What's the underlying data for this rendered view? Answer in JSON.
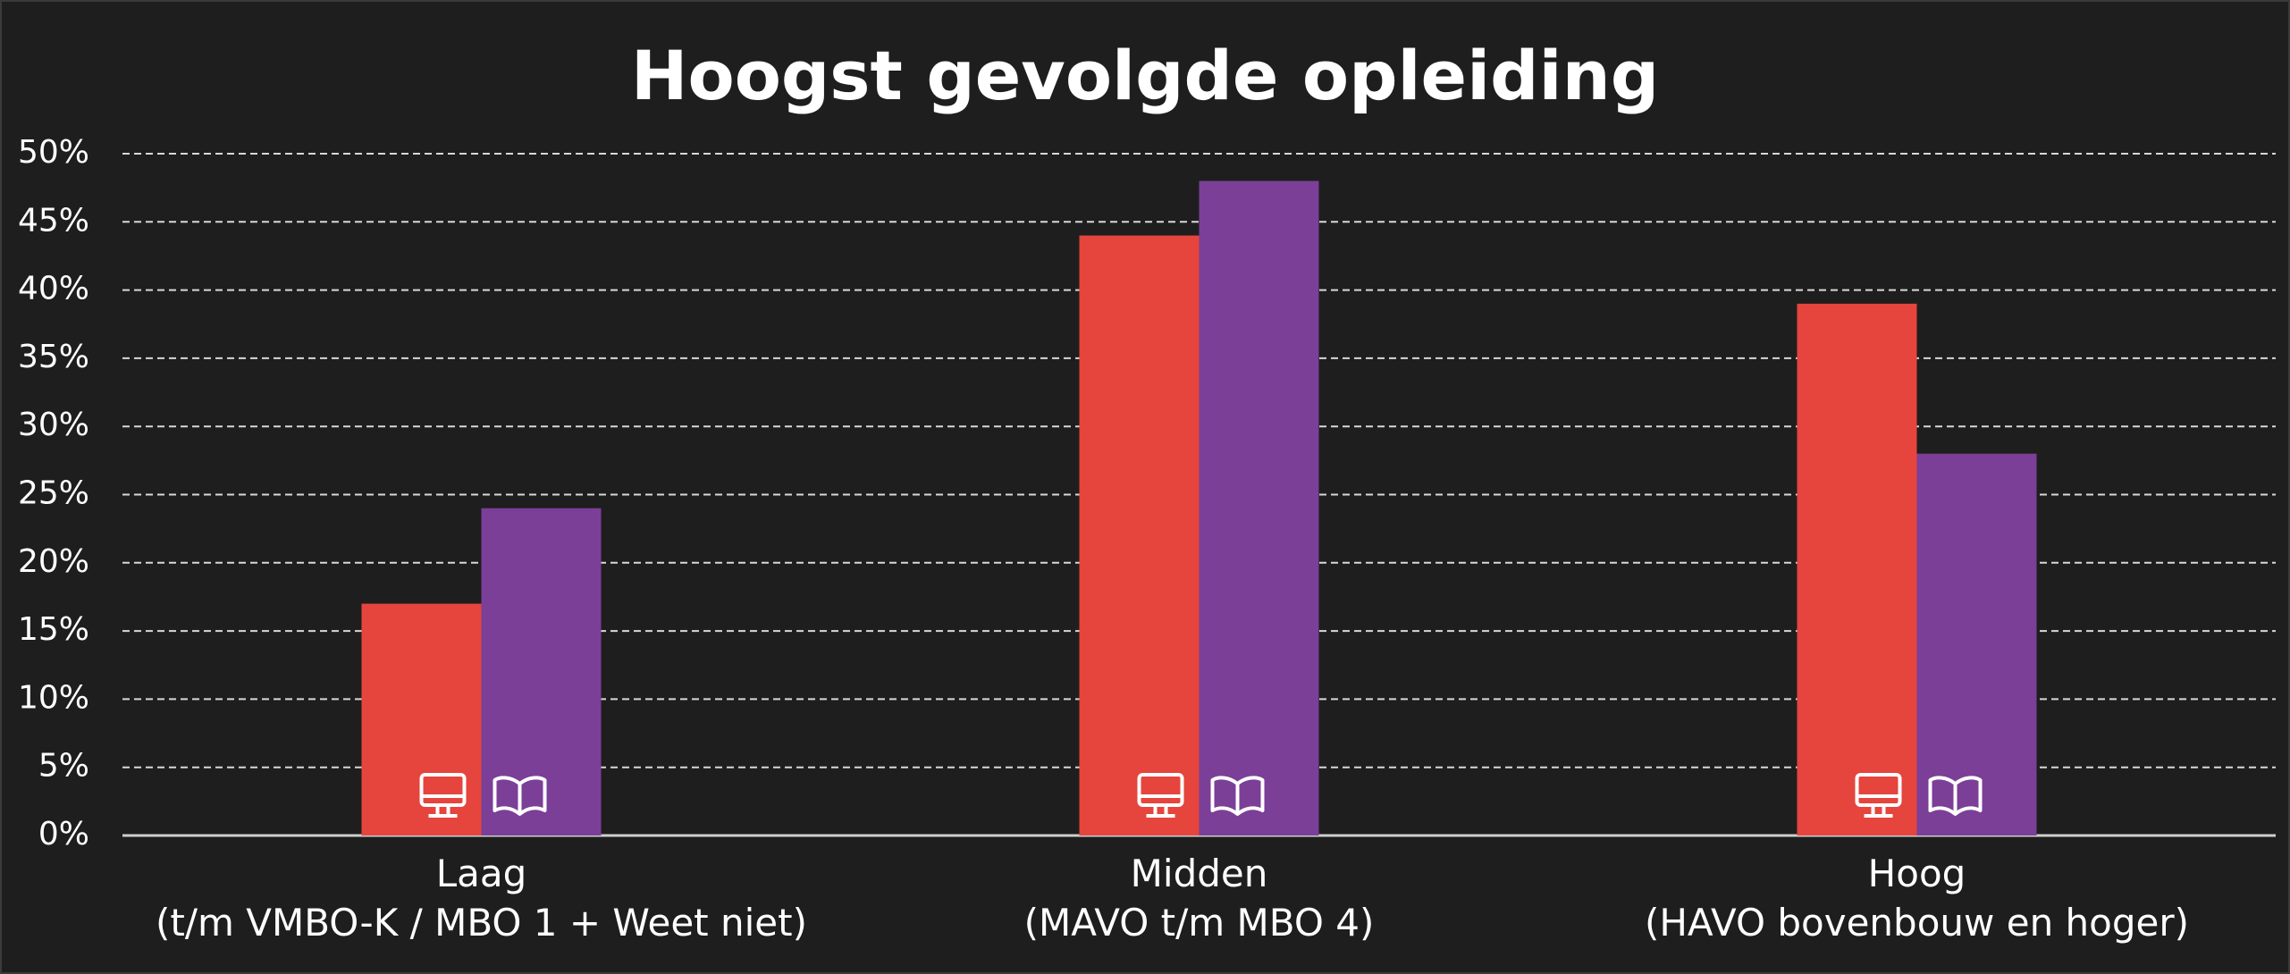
{
  "chart_data": {
    "type": "bar",
    "title": "Hoogst gevolgde opleiding",
    "categories": [
      "Laag\n(t/m VMBO-K / MBO 1 + Weet niet)",
      "Midden\n(MAVO t/m MBO 4)",
      "Hoog\n(HAVO bovenbouw en hoger)"
    ],
    "series": [
      {
        "color": "#e5453d",
        "values": [
          17,
          44,
          39
        ]
      },
      {
        "color": "#7b3f98",
        "values": [
          24,
          48,
          28
        ]
      }
    ],
    "ylim": [
      0,
      50
    ],
    "yticks": [
      {
        "value": 0,
        "label": "0%"
      },
      {
        "value": 5,
        "label": "5%"
      },
      {
        "value": 10,
        "label": "10%"
      },
      {
        "value": 15,
        "label": "15%"
      },
      {
        "value": 20,
        "label": "20%"
      },
      {
        "value": 25,
        "label": "25%"
      },
      {
        "value": 30,
        "label": "30%"
      },
      {
        "value": 35,
        "label": "35%"
      },
      {
        "value": 40,
        "label": "40%"
      },
      {
        "value": 45,
        "label": "45%"
      },
      {
        "value": 50,
        "label": "50%"
      }
    ],
    "grid": true
  }
}
